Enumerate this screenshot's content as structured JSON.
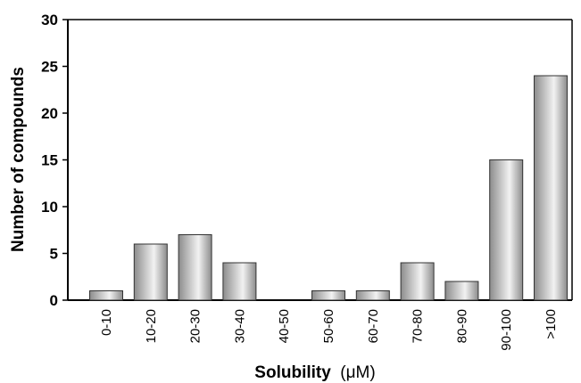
{
  "chart_data": {
    "type": "bar",
    "categories": [
      "0-10",
      "10-20",
      "20-30",
      "30-40",
      "40-50",
      "50-60",
      "60-70",
      "70-80",
      "80-90",
      "90-100",
      ">100"
    ],
    "values": [
      1,
      6,
      7,
      4,
      0,
      1,
      1,
      4,
      2,
      15,
      24
    ],
    "xlabel": "Solubility",
    "xlabel_unit": "(μM)",
    "ylabel": "Number of compounds",
    "ylim": [
      0,
      30
    ],
    "yticks": [
      "0",
      "5",
      "10",
      "15",
      "20",
      "25",
      "30"
    ],
    "grid": false,
    "legend": "none",
    "colors": {
      "bar_dark": "#8c8c8c",
      "bar_light": "#f2f2f2",
      "bar_stroke": "#333333",
      "axis": "#000000"
    }
  }
}
